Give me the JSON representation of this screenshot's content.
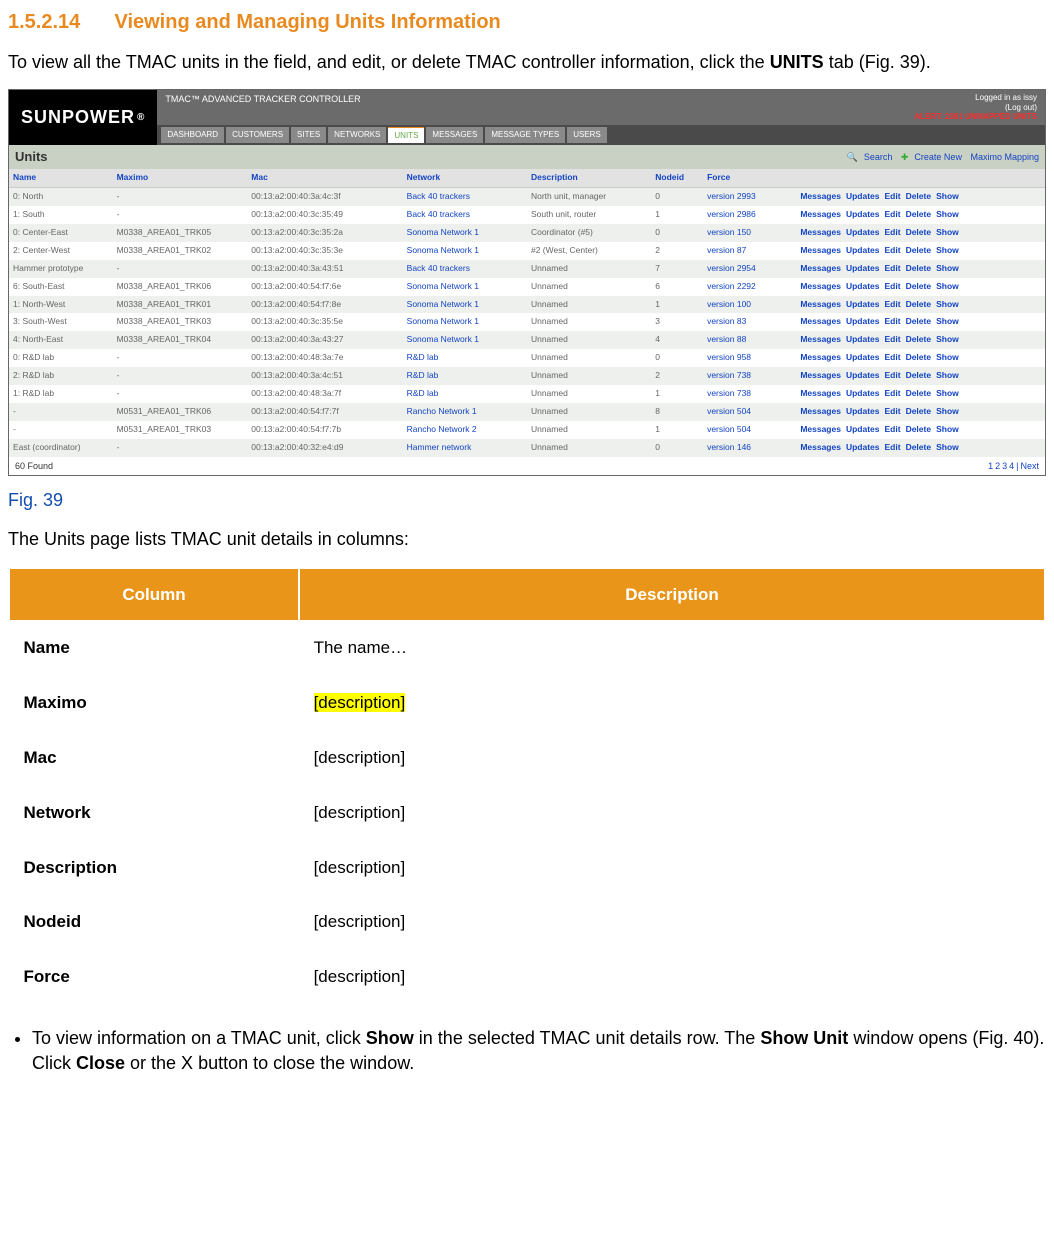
{
  "section": {
    "number": "1.5.2.14",
    "title": "Viewing and Managing Units Information"
  },
  "intro_pre": "To view all the TMAC units in the field, and edit, or delete TMAC controller information, click the ",
  "intro_bold": "UNITS",
  "intro_post": " tab (Fig. 39).",
  "screenshot": {
    "logo": "SUNPOWER",
    "app_title": "TMAC™ ADVANCED TRACKER CONTROLLER",
    "logged_in": "Logged in as issy",
    "logout": "(Log out)",
    "alert": "ALERT: 2361 UNMAPPED UNITS",
    "tabs": [
      "DASHBOARD",
      "CUSTOMERS",
      "SITES",
      "NETWORKS",
      "UNITS",
      "MESSAGES",
      "MESSAGE TYPES",
      "USERS"
    ],
    "active_tab": 4,
    "panel_title": "Units",
    "top_links": {
      "search": "Search",
      "create": "Create New",
      "maximo": "Maximo Mapping"
    },
    "table_headers": [
      "Name",
      "Maximo",
      "Mac",
      "Network",
      "Description",
      "Nodeid",
      "Force",
      ""
    ],
    "rows": [
      [
        "0: North",
        "-",
        "00:13:a2:00:40:3a:4c:3f",
        "Back 40 trackers",
        "North unit, manager",
        "0",
        "version 2993"
      ],
      [
        "1: South",
        "-",
        "00:13:a2:00:40:3c:35:49",
        "Back 40 trackers",
        "South unit, router",
        "1",
        "version 2986"
      ],
      [
        "0: Center-East",
        "M0338_AREA01_TRK05",
        "00:13:a2:00:40:3c:35:2a",
        "Sonoma Network 1",
        "Coordinator (#5)",
        "0",
        "version 150"
      ],
      [
        "2: Center-West",
        "M0338_AREA01_TRK02",
        "00:13:a2:00:40:3c:35:3e",
        "Sonoma Network 1",
        "#2 (West, Center)",
        "2",
        "version 87"
      ],
      [
        "Hammer prototype",
        "-",
        "00:13:a2:00:40:3a:43:51",
        "Back 40 trackers",
        "Unnamed",
        "7",
        "version 2954"
      ],
      [
        "6: South-East",
        "M0338_AREA01_TRK06",
        "00:13:a2:00:40:54:f7:6e",
        "Sonoma Network 1",
        "Unnamed",
        "6",
        "version 2292"
      ],
      [
        "1: North-West",
        "M0338_AREA01_TRK01",
        "00:13:a2:00:40:54:f7:8e",
        "Sonoma Network 1",
        "Unnamed",
        "1",
        "version 100"
      ],
      [
        "3: South-West",
        "M0338_AREA01_TRK03",
        "00:13:a2:00:40:3c:35:5e",
        "Sonoma Network 1",
        "Unnamed",
        "3",
        "version 83"
      ],
      [
        "4: North-East",
        "M0338_AREA01_TRK04",
        "00:13:a2:00:40:3a:43:27",
        "Sonoma Network 1",
        "Unnamed",
        "4",
        "version 88"
      ],
      [
        "0: R&D lab",
        "-",
        "00:13:a2:00:40:48:3a:7e",
        "R&D lab",
        "Unnamed",
        "0",
        "version 958"
      ],
      [
        "2: R&D lab",
        "-",
        "00:13:a2:00:40:3a:4c:51",
        "R&D lab",
        "Unnamed",
        "2",
        "version 738"
      ],
      [
        "1: R&D lab",
        "-",
        "00:13:a2:00:40:48:3a:7f",
        "R&D lab",
        "Unnamed",
        "1",
        "version 738"
      ],
      [
        "-",
        "M0531_AREA01_TRK06",
        "00:13:a2:00:40:54:f7:7f",
        "Rancho Network 1",
        "Unnamed",
        "8",
        "version 504"
      ],
      [
        "-",
        "M0531_AREA01_TRK03",
        "00:13:a2:00:40:54:f7:7b",
        "Rancho Network 2",
        "Unnamed",
        "1",
        "version 504"
      ],
      [
        "East (coordinator)",
        "-",
        "00:13:a2:00:40:32:e4:d9",
        "Hammer network",
        "Unnamed",
        "0",
        "version 146"
      ]
    ],
    "row_actions": [
      "Messages",
      "Updates",
      "Edit",
      "Delete",
      "Show"
    ],
    "footer_count": "60 Found",
    "pager": [
      "1",
      "2",
      "3",
      "4",
      "|",
      "Next"
    ]
  },
  "fig_label": "Fig. 39",
  "columns_intro": "The Units page lists TMAC unit details in columns:",
  "col_table": {
    "headers": [
      "Column",
      "Description"
    ],
    "rows": [
      {
        "c": "Name",
        "d": "The name…",
        "hl": false
      },
      {
        "c": "Maximo",
        "d": "[description]",
        "hl": true
      },
      {
        "c": "Mac",
        "d": "[description]",
        "hl": false
      },
      {
        "c": "Network",
        "d": "[description]",
        "hl": false
      },
      {
        "c": "Description",
        "d": "[description]",
        "hl": false
      },
      {
        "c": "Nodeid",
        "d": "[description]",
        "hl": false
      },
      {
        "c": "Force",
        "d": "[description]",
        "hl": false
      }
    ]
  },
  "bullet": {
    "p1": "To view information on a TMAC unit, click ",
    "b1": "Show",
    "p2": " in the selected TMAC unit details row. The ",
    "b2": "Show Unit",
    "p3": " window opens (Fig. 40). Click ",
    "b3": "Close",
    "p4": " or the X button to close the window."
  }
}
